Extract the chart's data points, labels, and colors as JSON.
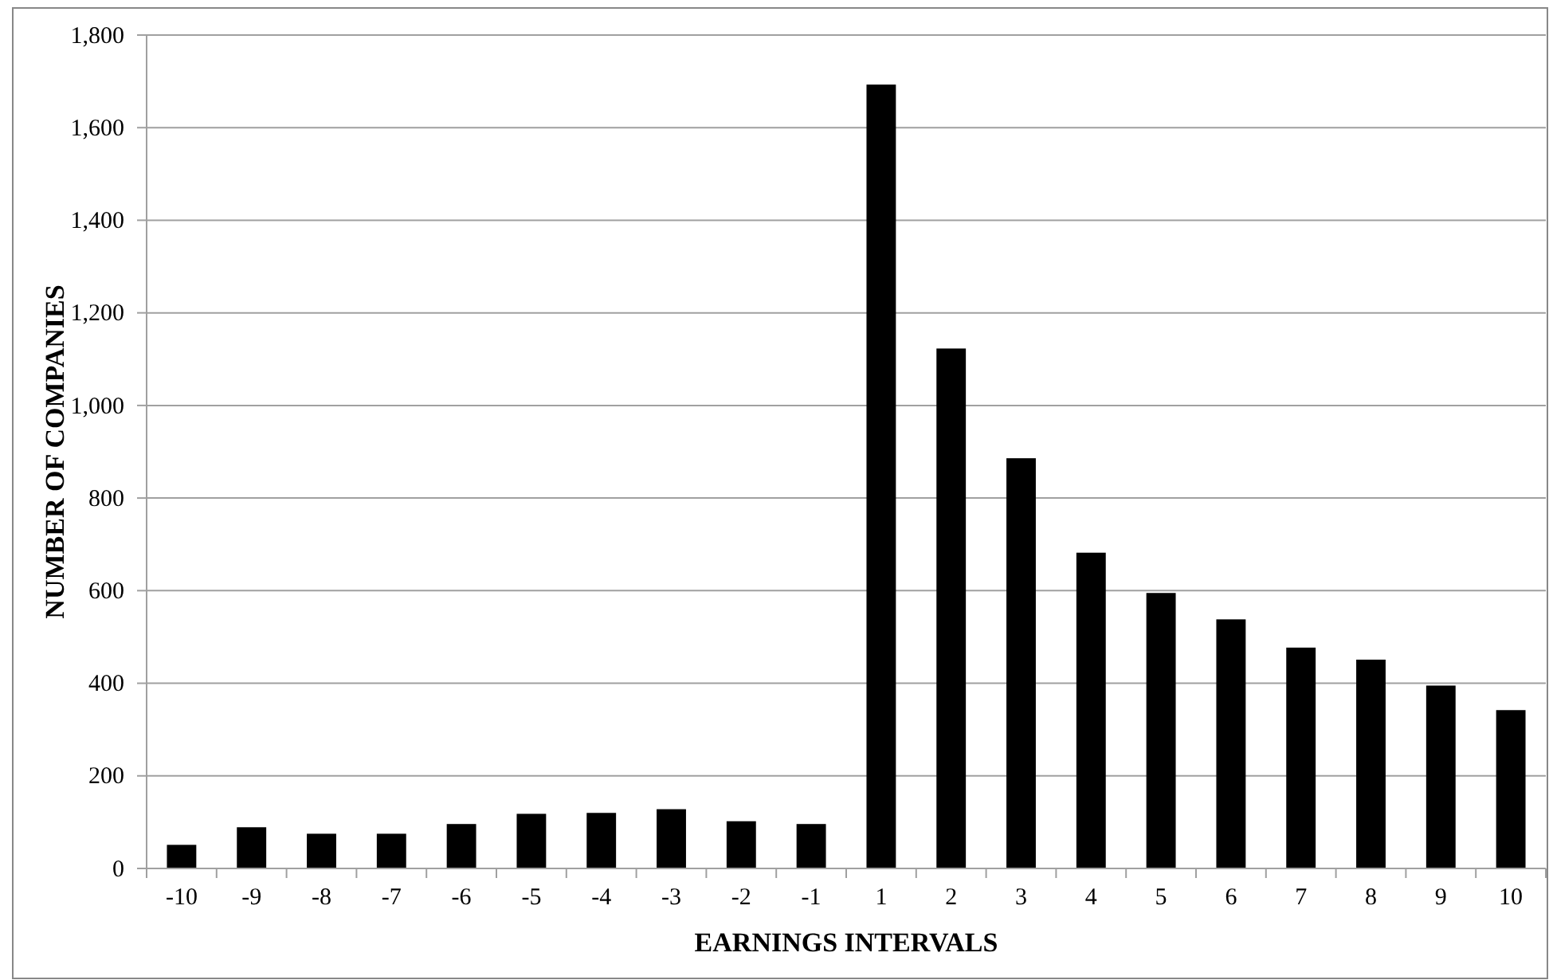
{
  "chart_data": {
    "type": "bar",
    "xlabel": "EARNINGS INTERVALS",
    "ylabel": "NUMBER OF COMPANIES",
    "categories": [
      "-10",
      "-9",
      "-8",
      "-7",
      "-6",
      "-5",
      "-4",
      "-3",
      "-2",
      "-1",
      "1",
      "2",
      "3",
      "4",
      "5",
      "6",
      "7",
      "8",
      "9",
      "10"
    ],
    "values": [
      51,
      89,
      75,
      75,
      96,
      118,
      120,
      128,
      102,
      96,
      1693,
      1123,
      886,
      682,
      595,
      538,
      477,
      451,
      395,
      342
    ],
    "color": "#000000",
    "ylim": [
      0,
      1800
    ],
    "yticks": [
      0,
      {
        "value": 200,
        "label": "200"
      },
      {
        "value": 400,
        "label": "400"
      },
      {
        "value": 600,
        "label": "600"
      },
      {
        "value": 800,
        "label": "800"
      },
      {
        "value": 1000,
        "label": "1,000"
      },
      {
        "value": 1200,
        "label": "1,200"
      },
      {
        "value": 1400,
        "label": "1,400"
      },
      {
        "value": 1600,
        "label": "1,600"
      },
      {
        "value": 1800,
        "label": "1,800"
      }
    ],
    "grid": "y"
  }
}
